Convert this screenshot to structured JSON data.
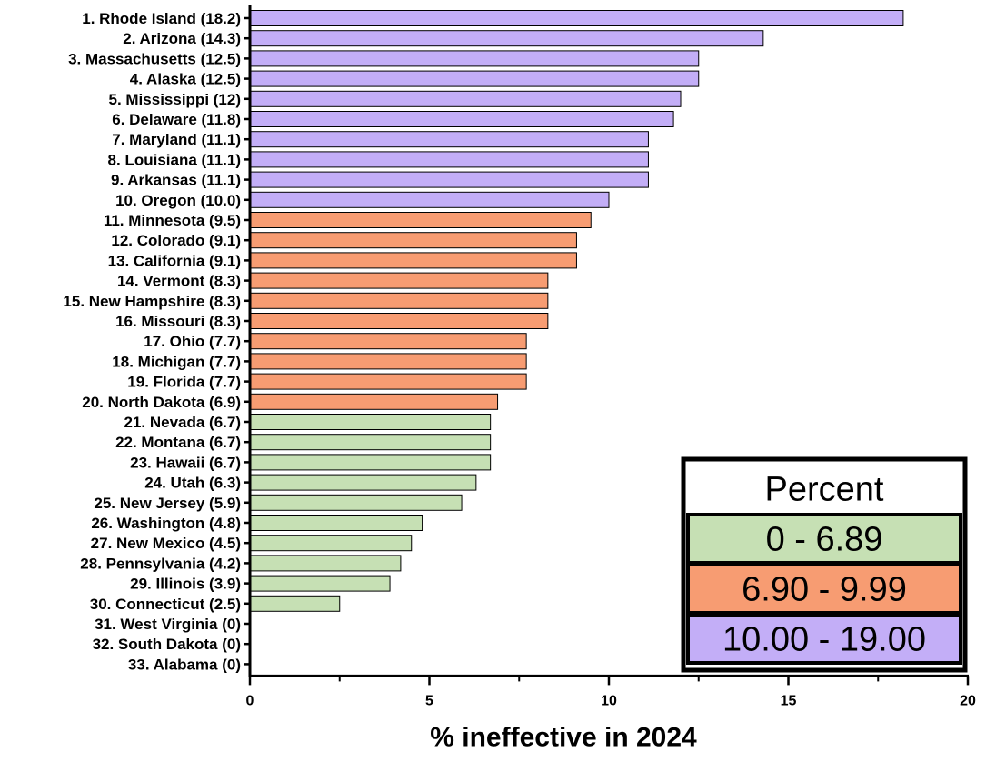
{
  "chart_data": {
    "type": "bar",
    "orientation": "horizontal",
    "categories": [
      "1. Rhode Island (18.2)",
      "2. Arizona (14.3)",
      "3. Massachusetts (12.5)",
      "4. Alaska (12.5)",
      "5. Mississippi (12)",
      "6. Delaware (11.8)",
      "7. Maryland (11.1)",
      "8. Louisiana (11.1)",
      "9. Arkansas (11.1)",
      "10. Oregon (10.0)",
      "11. Minnesota (9.5)",
      "12. Colorado (9.1)",
      "13. California (9.1)",
      "14. Vermont (8.3)",
      "15. New Hampshire (8.3)",
      "16. Missouri (8.3)",
      "17. Ohio (7.7)",
      "18. Michigan (7.7)",
      "19. Florida (7.7)",
      "20. North Dakota (6.9)",
      "21. Nevada (6.7)",
      "22. Montana (6.7)",
      "23. Hawaii (6.7)",
      "24. Utah (6.3)",
      "25. New Jersey (5.9)",
      "26. Washington (4.8)",
      "27. New Mexico (4.5)",
      "28. Pennsylvania (4.2)",
      "29. Illinois (3.9)",
      "30. Connecticut (2.5)",
      "31. West Virginia (0)",
      "32. South Dakota (0)",
      "33. Alabama (0)"
    ],
    "values": [
      18.2,
      14.3,
      12.5,
      12.5,
      12,
      11.8,
      11.1,
      11.1,
      11.1,
      10.0,
      9.5,
      9.1,
      9.1,
      8.3,
      8.3,
      8.3,
      7.7,
      7.7,
      7.7,
      6.9,
      6.7,
      6.7,
      6.7,
      6.3,
      5.9,
      4.8,
      4.5,
      4.2,
      3.9,
      2.5,
      0,
      0,
      0
    ],
    "xlabel": "% ineffective in 2024",
    "xlim": [
      0,
      20
    ],
    "xticks": [
      0,
      5,
      10,
      15,
      20
    ],
    "grid": false,
    "legend": {
      "title": "Percent",
      "placement": "bottom-right",
      "entries": [
        {
          "label": "0 - 6.89",
          "color": "#c6e0b4"
        },
        {
          "label": "6.90 - 9.99",
          "color": "#f79c72"
        },
        {
          "label": "10.00 - 19.00",
          "color": "#c3aef7"
        }
      ]
    },
    "color_ranges": [
      {
        "min": 0,
        "max": 6.89,
        "color": "#c6e0b4"
      },
      {
        "min": 6.9,
        "max": 9.99,
        "color": "#f79c72"
      },
      {
        "min": 10.0,
        "max": 19.0,
        "color": "#c3aef7"
      }
    ]
  }
}
